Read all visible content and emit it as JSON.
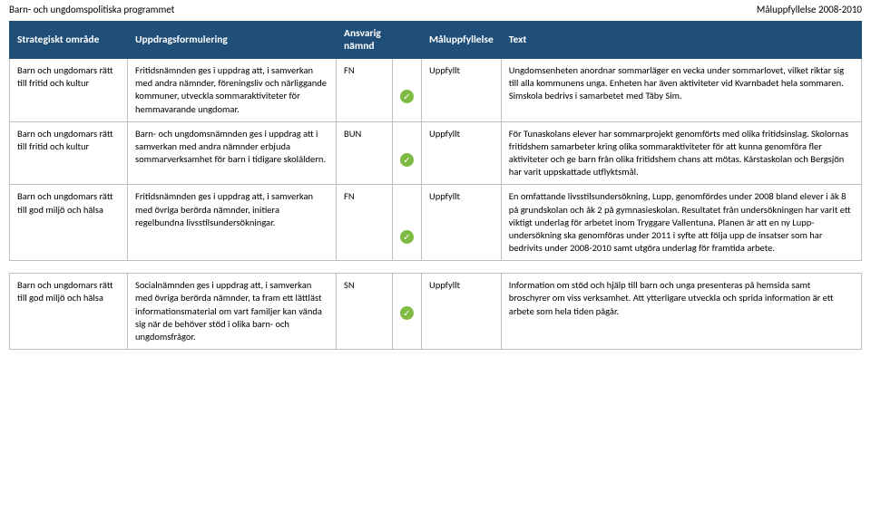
{
  "header": {
    "left": "Barn- och ungdomspolitiska programmet",
    "right": "Måluppfyllelse 2008-2010"
  },
  "columns": {
    "strategiskt": "Strategiskt område",
    "uppdrag": "Uppdragsformulering",
    "ansvarig": "Ansvarig nämnd",
    "status": "",
    "mal": "Måluppfyllelse",
    "text": "Text"
  },
  "rows": [
    {
      "strategiskt": "Barn och ungdomars rätt till fritid och kultur",
      "uppdrag": "Fritidsnämnden ges i uppdrag att, i samverkan med andra nämnder, föreningsliv och närliggande kommuner, utveckla sommaraktiviteter för hemmavarande ungdomar.",
      "ansvarig": "FN",
      "mal": "Uppfyllt",
      "text": "Ungdomsenheten anordnar sommarläger en vecka under sommarlovet, vilket riktar sig till alla kommunens unga. Enheten har även aktiviteter vid Kvarnbadet hela sommaren. Simskola bedrivs i samarbetet med Täby Sim."
    },
    {
      "strategiskt": "Barn och ungdomars rätt till fritid och kultur",
      "uppdrag": "Barn- och ungdomsnämnden ges i uppdrag att i samverkan med andra nämnder erbjuda sommarverksamhet för barn i tidigare skolåldern.",
      "ansvarig": "BUN",
      "mal": "Uppfyllt",
      "text": "För Tunaskolans elever har sommarprojekt genomförts med olika fritidsinslag. Skolornas fritidshem samarbeter kring olika sommaraktiviteter för att kunna genomföra fler aktiviteter och ge barn från olika fritidshem chans att mötas. Kårstaskolan och Bergsjön har varit uppskattade utflyktsmål."
    },
    {
      "strategiskt": "Barn och ungdomars rätt till god miljö och hälsa",
      "uppdrag": "Fritidsnämnden ges i uppdrag att, i samverkan med övriga berörda nämnder, initiera regelbundna livsstilsundersökningar.",
      "ansvarig": "FN",
      "mal": "Uppfyllt",
      "text": "En omfattande livsstilsundersökning, Lupp, genomfördes under 2008 bland elever i åk 8 på grundskolan och åk 2 på gymnasieskolan.  Resultatet från undersökningen har varit ett viktigt underlag för arbetet inom Tryggare Vallentuna. Planen är att en ny Lupp-undersökning ska genomföras under 2011 i syfte att följa upp de insatser som har bedrivits under 2008-2010 samt utgöra underlag för framtida arbete."
    },
    {
      "strategiskt": "Barn och ungdomars rätt till god miljö och hälsa",
      "uppdrag": "Socialnämnden ges i uppdrag att, i samverkan med övriga berörda nämnder, ta fram ett lättläst informationsmaterial om vart familjer kan vända sig när de behöver stöd i olika barn- och ungdomsfrågor.",
      "ansvarig": "SN",
      "mal": "Uppfyllt",
      "text": "Information om stöd och hjälp till barn och unga presenteras på hemsida samt broschyrer om viss verksamhet. Att ytterligare utveckla och sprida information är ett arbete som hela tiden pågår."
    }
  ],
  "status_icon_color": "#7fba42"
}
